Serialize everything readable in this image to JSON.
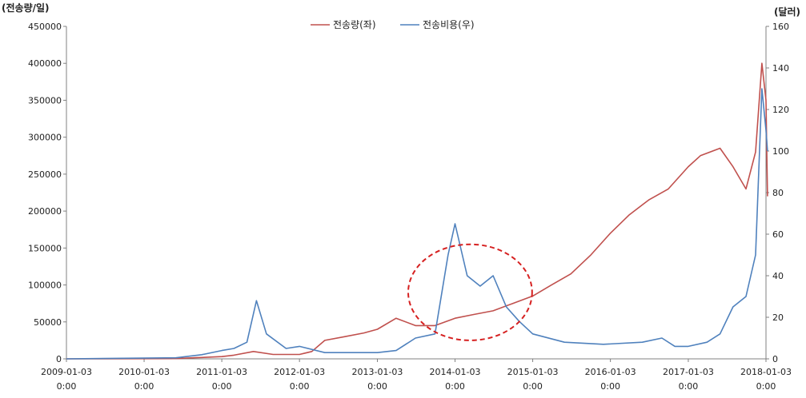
{
  "chart_data": {
    "type": "line",
    "title": "",
    "y_left_unit": "(전송량/일)",
    "y_right_unit": "(달러)",
    "y_left_range": [
      0,
      450000
    ],
    "y_right_range": [
      0,
      160
    ],
    "y_left_ticks": [
      "0",
      "50000",
      "100000",
      "150000",
      "200000",
      "250000",
      "300000",
      "350000",
      "400000",
      "450000"
    ],
    "y_right_ticks": [
      "0",
      "20",
      "40",
      "60",
      "80",
      "100",
      "120",
      "140",
      "160"
    ],
    "x_range": [
      "2009-01-03",
      "2018-01-03"
    ],
    "x_ticks": [
      {
        "date": "2009-01-03",
        "time": "0:00"
      },
      {
        "date": "2010-01-03",
        "time": "0:00"
      },
      {
        "date": "2011-01-03",
        "time": "0:00"
      },
      {
        "date": "2012-01-03",
        "time": "0:00"
      },
      {
        "date": "2013-01-03",
        "time": "0:00"
      },
      {
        "date": "2014-01-03",
        "time": "0:00"
      },
      {
        "date": "2015-01-03",
        "time": "0:00"
      },
      {
        "date": "2016-01-03",
        "time": "0:00"
      },
      {
        "date": "2017-01-03",
        "time": "0:00"
      },
      {
        "date": "2018-01-03",
        "time": "0:00"
      }
    ],
    "legend_position": "top-center",
    "grid": false,
    "annotation": "dashed red ellipse around 2014",
    "series": [
      {
        "name": "전송량(좌)",
        "axis": "left",
        "color": "#c0504d",
        "points": [
          [
            "2009-01-03",
            0
          ],
          [
            "2010-06-01",
            300
          ],
          [
            "2010-09-01",
            1500
          ],
          [
            "2011-01-03",
            3000
          ],
          [
            "2011-03-01",
            5000
          ],
          [
            "2011-06-01",
            10000
          ],
          [
            "2011-09-01",
            6000
          ],
          [
            "2012-01-03",
            6000
          ],
          [
            "2012-03-01",
            10000
          ],
          [
            "2012-05-01",
            25000
          ],
          [
            "2012-08-01",
            30000
          ],
          [
            "2012-11-01",
            35000
          ],
          [
            "2013-01-03",
            40000
          ],
          [
            "2013-04-01",
            55000
          ],
          [
            "2013-07-01",
            45000
          ],
          [
            "2013-10-01",
            45000
          ],
          [
            "2014-01-03",
            55000
          ],
          [
            "2014-04-01",
            60000
          ],
          [
            "2014-07-01",
            65000
          ],
          [
            "2014-10-01",
            75000
          ],
          [
            "2015-01-03",
            85000
          ],
          [
            "2015-04-01",
            100000
          ],
          [
            "2015-07-01",
            115000
          ],
          [
            "2015-10-01",
            140000
          ],
          [
            "2016-01-03",
            170000
          ],
          [
            "2016-04-01",
            195000
          ],
          [
            "2016-07-01",
            215000
          ],
          [
            "2016-10-01",
            230000
          ],
          [
            "2017-01-03",
            260000
          ],
          [
            "2017-03-01",
            275000
          ],
          [
            "2017-06-01",
            285000
          ],
          [
            "2017-08-01",
            260000
          ],
          [
            "2017-10-01",
            230000
          ],
          [
            "2017-11-15",
            280000
          ],
          [
            "2017-12-15",
            400000
          ],
          [
            "2018-01-03",
            350000
          ],
          [
            "2018-01-10",
            220000
          ]
        ]
      },
      {
        "name": "전송비용(우)",
        "axis": "right",
        "color": "#4f81bd",
        "points": [
          [
            "2009-01-03",
            0
          ],
          [
            "2010-06-01",
            0.5
          ],
          [
            "2010-10-01",
            2
          ],
          [
            "2011-01-03",
            4
          ],
          [
            "2011-03-01",
            5
          ],
          [
            "2011-05-01",
            8
          ],
          [
            "2011-06-15",
            28
          ],
          [
            "2011-08-01",
            12
          ],
          [
            "2011-11-01",
            5
          ],
          [
            "2012-01-03",
            6
          ],
          [
            "2012-05-01",
            3
          ],
          [
            "2012-09-01",
            3
          ],
          [
            "2013-01-03",
            3
          ],
          [
            "2013-04-01",
            4
          ],
          [
            "2013-07-01",
            10
          ],
          [
            "2013-10-01",
            12
          ],
          [
            "2013-12-01",
            50
          ],
          [
            "2014-01-03",
            65
          ],
          [
            "2014-03-01",
            40
          ],
          [
            "2014-05-01",
            35
          ],
          [
            "2014-07-01",
            40
          ],
          [
            "2014-09-01",
            25
          ],
          [
            "2014-11-01",
            18
          ],
          [
            "2015-01-03",
            12
          ],
          [
            "2015-06-01",
            8
          ],
          [
            "2015-12-01",
            7
          ],
          [
            "2016-06-01",
            8
          ],
          [
            "2016-09-01",
            10
          ],
          [
            "2016-11-01",
            6
          ],
          [
            "2017-01-03",
            6
          ],
          [
            "2017-04-01",
            8
          ],
          [
            "2017-06-01",
            12
          ],
          [
            "2017-08-01",
            25
          ],
          [
            "2017-10-01",
            30
          ],
          [
            "2017-11-15",
            50
          ],
          [
            "2017-12-15",
            130
          ],
          [
            "2018-01-03",
            110
          ],
          [
            "2018-01-10",
            100
          ]
        ]
      }
    ]
  }
}
